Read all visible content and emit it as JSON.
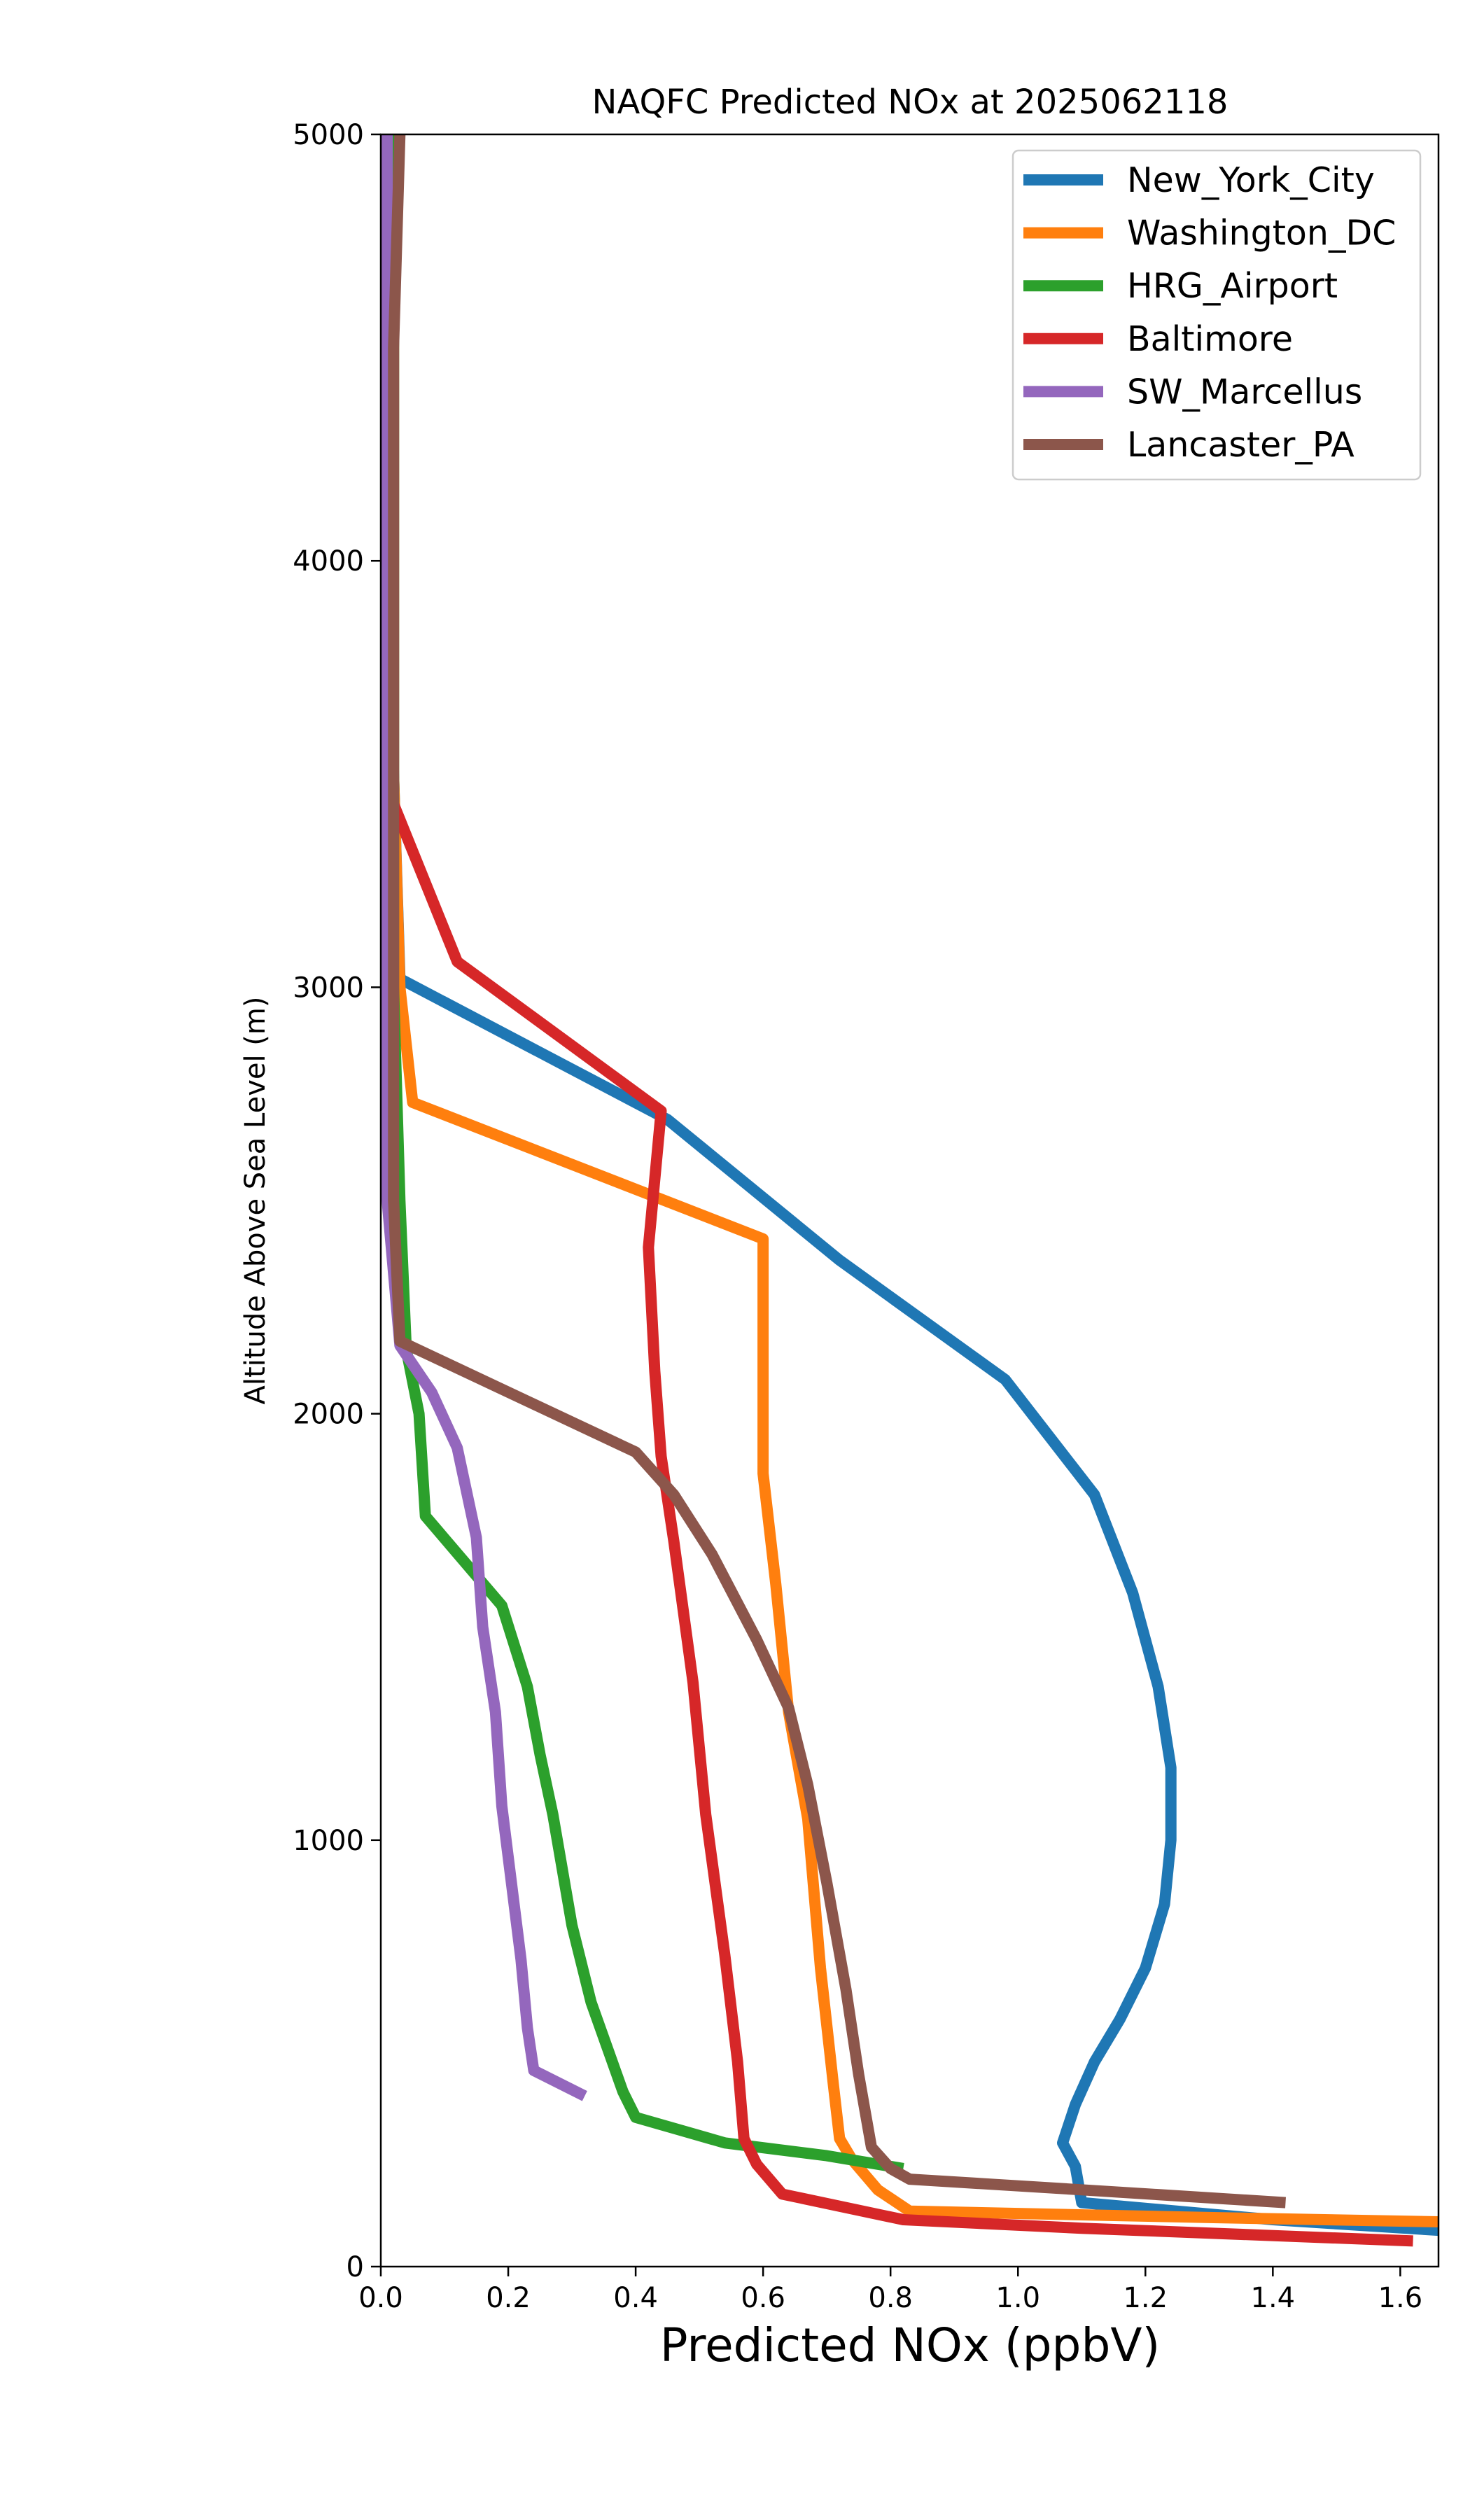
{
  "chart_data": {
    "type": "line",
    "title": "NAQFC Predicted NOx at 2025062118",
    "xlabel": "Predicted NOx (ppbV)",
    "ylabel": "Altitude Above Sea Level (m)",
    "xlim": [
      0,
      1.66
    ],
    "ylim": [
      0,
      5000
    ],
    "xticks": [
      "0.0",
      "0.2",
      "0.4",
      "0.6",
      "0.8",
      "1.0",
      "1.2",
      "1.4",
      "1.6"
    ],
    "yticks": [
      "0",
      "1000",
      "2000",
      "3000",
      "4000",
      "5000"
    ],
    "grid": false,
    "legend_position": "upper right",
    "series": [
      {
        "name": "New_York_City",
        "color": "#1f77b4",
        "points": [
          [
            1.66,
            85
          ],
          [
            1.4,
            110
          ],
          [
            1.1,
            150
          ],
          [
            1.09,
            235
          ],
          [
            1.07,
            290
          ],
          [
            1.09,
            380
          ],
          [
            1.12,
            480
          ],
          [
            1.16,
            580
          ],
          [
            1.2,
            700
          ],
          [
            1.23,
            850
          ],
          [
            1.24,
            1000
          ],
          [
            1.24,
            1170
          ],
          [
            1.22,
            1360
          ],
          [
            1.18,
            1580
          ],
          [
            1.12,
            1810
          ],
          [
            0.98,
            2080
          ],
          [
            0.72,
            2360
          ],
          [
            0.45,
            2690
          ],
          [
            0.03,
            3020
          ],
          [
            0.02,
            3500
          ],
          [
            0.01,
            4000
          ],
          [
            0.01,
            5000
          ]
        ]
      },
      {
        "name": "Washington_DC",
        "color": "#ff7f0e",
        "points": [
          [
            1.66,
            105
          ],
          [
            1.3,
            115
          ],
          [
            0.83,
            130
          ],
          [
            0.78,
            180
          ],
          [
            0.74,
            250
          ],
          [
            0.72,
            300
          ],
          [
            0.71,
            430
          ],
          [
            0.69,
            700
          ],
          [
            0.67,
            1050
          ],
          [
            0.64,
            1300
          ],
          [
            0.62,
            1600
          ],
          [
            0.6,
            1860
          ],
          [
            0.6,
            2100
          ],
          [
            0.6,
            2410
          ],
          [
            0.05,
            2730
          ],
          [
            0.03,
            3000
          ],
          [
            0.02,
            3500
          ],
          [
            0.02,
            4000
          ],
          [
            0.02,
            5000
          ]
        ]
      },
      {
        "name": "HRG_Airport",
        "color": "#2ca02c",
        "points": [
          [
            0.82,
            230
          ],
          [
            0.7,
            260
          ],
          [
            0.54,
            290
          ],
          [
            0.4,
            350
          ],
          [
            0.38,
            410
          ],
          [
            0.33,
            620
          ],
          [
            0.3,
            800
          ],
          [
            0.27,
            1060
          ],
          [
            0.25,
            1200
          ],
          [
            0.23,
            1360
          ],
          [
            0.19,
            1550
          ],
          [
            0.07,
            1760
          ],
          [
            0.06,
            2000
          ],
          [
            0.04,
            2150
          ],
          [
            0.03,
            2500
          ],
          [
            0.02,
            3000
          ],
          [
            0.02,
            4000
          ],
          [
            0.02,
            5000
          ]
        ]
      },
      {
        "name": "Baltimore",
        "color": "#d62728",
        "points": [
          [
            1.62,
            60
          ],
          [
            1.1,
            90
          ],
          [
            0.82,
            110
          ],
          [
            0.63,
            170
          ],
          [
            0.59,
            240
          ],
          [
            0.57,
            300
          ],
          [
            0.56,
            480
          ],
          [
            0.54,
            730
          ],
          [
            0.51,
            1060
          ],
          [
            0.49,
            1370
          ],
          [
            0.46,
            1700
          ],
          [
            0.44,
            1900
          ],
          [
            0.43,
            2100
          ],
          [
            0.42,
            2390
          ],
          [
            0.44,
            2710
          ],
          [
            0.12,
            3060
          ],
          [
            0.02,
            3430
          ],
          [
            0.01,
            4000
          ],
          [
            0.01,
            5000
          ]
        ]
      },
      {
        "name": "SW_Marcellus",
        "color": "#9467bd",
        "points": [
          [
            0.32,
            400
          ],
          [
            0.24,
            460
          ],
          [
            0.23,
            560
          ],
          [
            0.22,
            720
          ],
          [
            0.19,
            1080
          ],
          [
            0.18,
            1300
          ],
          [
            0.16,
            1500
          ],
          [
            0.15,
            1710
          ],
          [
            0.12,
            1920
          ],
          [
            0.08,
            2050
          ],
          [
            0.03,
            2160
          ],
          [
            0.01,
            2500
          ],
          [
            0.01,
            3000
          ],
          [
            0.01,
            4000
          ],
          [
            0.01,
            5000
          ]
        ]
      },
      {
        "name": "Lancaster_PA",
        "color": "#8c564b",
        "points": [
          [
            1.42,
            150
          ],
          [
            1.1,
            180
          ],
          [
            0.83,
            205
          ],
          [
            0.8,
            230
          ],
          [
            0.77,
            280
          ],
          [
            0.75,
            450
          ],
          [
            0.73,
            650
          ],
          [
            0.7,
            900
          ],
          [
            0.67,
            1130
          ],
          [
            0.64,
            1310
          ],
          [
            0.59,
            1470
          ],
          [
            0.52,
            1670
          ],
          [
            0.46,
            1810
          ],
          [
            0.4,
            1910
          ],
          [
            0.03,
            2170
          ],
          [
            0.02,
            2500
          ],
          [
            0.02,
            3000
          ],
          [
            0.02,
            4000
          ],
          [
            0.02,
            4500
          ],
          [
            0.03,
            5000
          ]
        ]
      }
    ]
  }
}
